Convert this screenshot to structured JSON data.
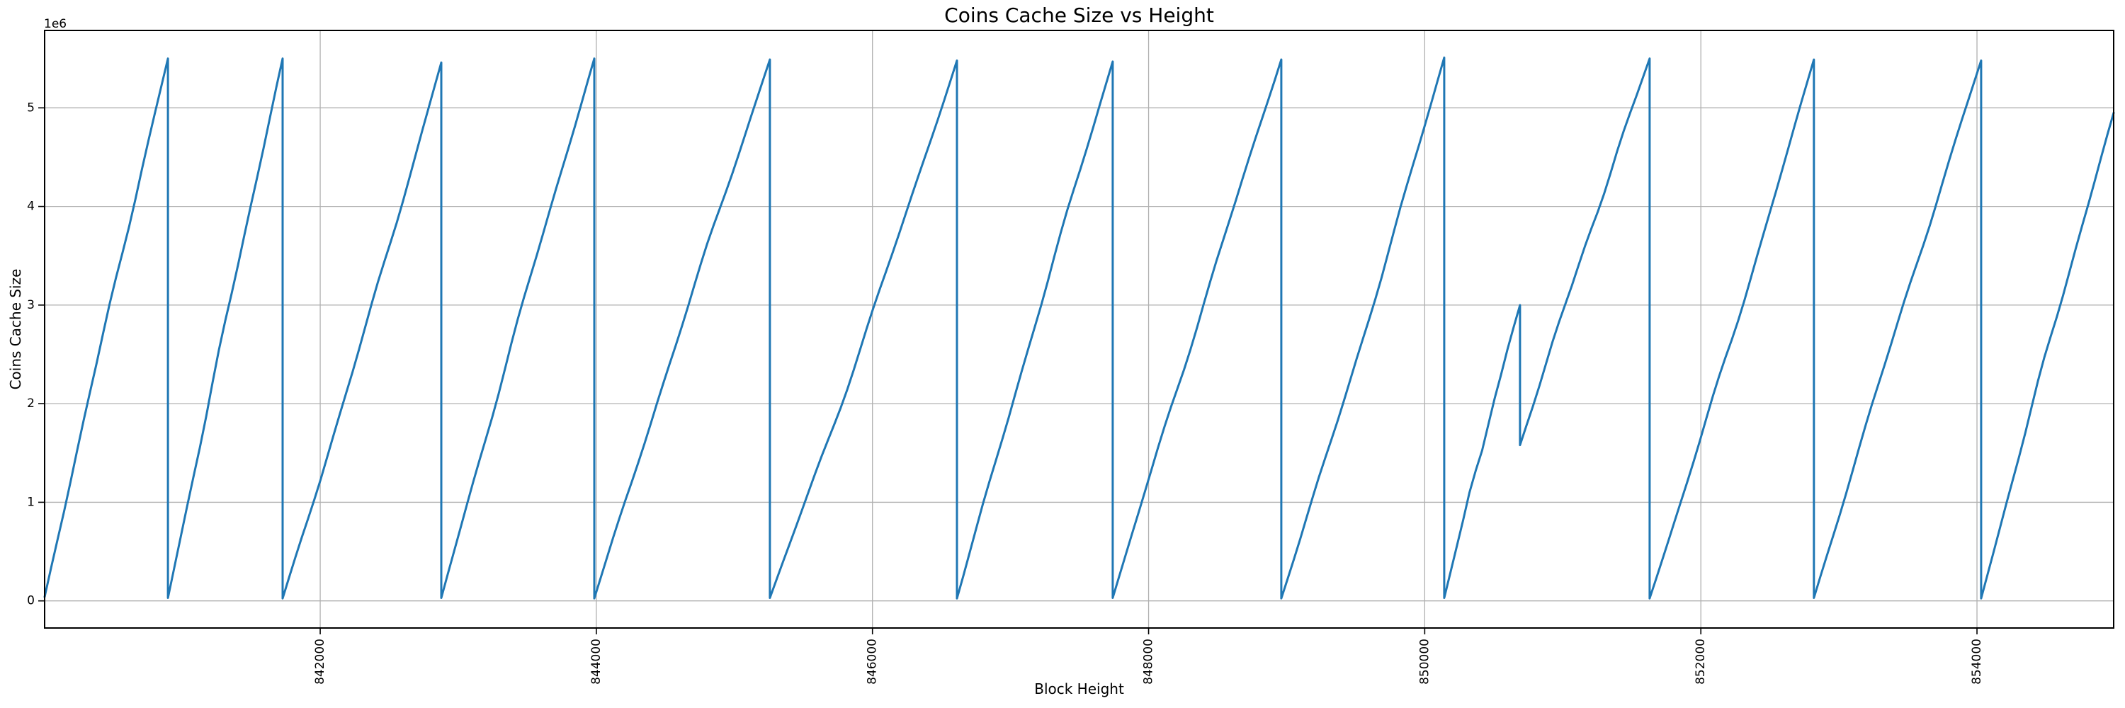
{
  "colors": {
    "background": "#ffffff",
    "line": "#1f77b4",
    "grid": "#b0b0b0",
    "spine": "#000000",
    "text": "#000000"
  },
  "chart_data": {
    "type": "line",
    "title": "Coins Cache Size vs Height",
    "xlabel": "Block Height",
    "ylabel": "Coins Cache Size",
    "y_offset_text": "1e6",
    "grid": true,
    "legend_position": "none",
    "x_tick_rotation": 90,
    "xlim": [
      840004,
      854990
    ],
    "ylim": [
      -275000,
      5785000
    ],
    "x_ticks": [
      842000,
      844000,
      846000,
      848000,
      850000,
      852000,
      854000
    ],
    "y_ticks": [
      0,
      1000000,
      2000000,
      3000000,
      4000000,
      5000000
    ],
    "y_tick_scale": 1000000,
    "series": [
      {
        "name": "coins cache size",
        "color": "#1f77b4",
        "vertices": [
          [
            840004,
            40000
          ],
          [
            840897,
            5500000
          ],
          [
            840897,
            30000
          ],
          [
            841728,
            5500000
          ],
          [
            841728,
            25000
          ],
          [
            842877,
            5460000
          ],
          [
            842877,
            30000
          ],
          [
            843985,
            5500000
          ],
          [
            843985,
            25000
          ],
          [
            845257,
            5490000
          ],
          [
            845257,
            30000
          ],
          [
            846612,
            5480000
          ],
          [
            846612,
            25000
          ],
          [
            847740,
            5470000
          ],
          [
            847740,
            30000
          ],
          [
            848961,
            5490000
          ],
          [
            848961,
            25000
          ],
          [
            850141,
            5510000
          ],
          [
            850141,
            30000
          ],
          [
            850690,
            3000000
          ],
          [
            850690,
            1580000
          ],
          [
            851629,
            5500000
          ],
          [
            851629,
            25000
          ],
          [
            852819,
            5490000
          ],
          [
            852819,
            30000
          ],
          [
            854030,
            5480000
          ],
          [
            854030,
            25000
          ],
          [
            854990,
            4950000
          ]
        ]
      }
    ]
  }
}
